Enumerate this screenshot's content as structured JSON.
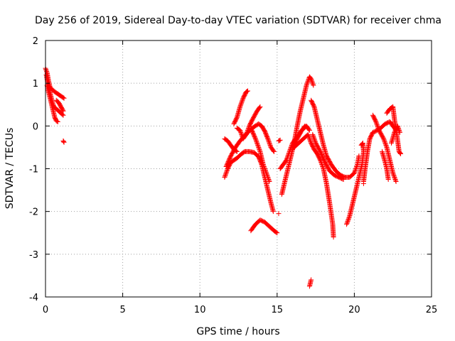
{
  "chart_data": {
    "type": "scatter",
    "title": "Day 256 of 2019, Sidereal Day-to-day VTEC variation (SDTVAR) for receiver chma",
    "xlabel": "GPS time / hours",
    "ylabel": "SDTVAR / TECUs",
    "xlim": [
      0,
      25
    ],
    "ylim": [
      -4,
      2
    ],
    "xticks": [
      0,
      5,
      10,
      15,
      20,
      25
    ],
    "yticks": [
      -4,
      -3,
      -2,
      -1,
      0,
      1,
      2
    ],
    "xtick_labels": [
      "0",
      "5",
      "10",
      "15",
      "20",
      "25"
    ],
    "ytick_labels": [
      "-4",
      "-3",
      "-2",
      "-1",
      "0",
      "1",
      "2"
    ],
    "grid": true,
    "marker": "plus",
    "color": "#ff0000",
    "series": [
      {
        "name": "",
        "tracks": [
          [
            [
              0.0,
              1.35
            ],
            [
              0.1,
              1.25
            ],
            [
              0.2,
              1.05
            ],
            [
              0.3,
              0.9
            ],
            [
              0.45,
              0.85
            ],
            [
              0.6,
              0.8
            ],
            [
              0.8,
              0.75
            ],
            [
              1.0,
              0.7
            ],
            [
              1.2,
              0.65
            ]
          ],
          [
            [
              0.05,
              1.2
            ],
            [
              0.15,
              1.0
            ],
            [
              0.25,
              0.85
            ],
            [
              0.35,
              0.7
            ],
            [
              0.45,
              0.55
            ],
            [
              0.55,
              0.45
            ],
            [
              0.7,
              0.4
            ],
            [
              0.85,
              0.35
            ],
            [
              1.0,
              0.3
            ],
            [
              1.15,
              0.25
            ]
          ],
          [
            [
              0.1,
              0.95
            ],
            [
              0.2,
              0.8
            ],
            [
              0.3,
              0.65
            ],
            [
              0.4,
              0.5
            ],
            [
              0.5,
              0.35
            ],
            [
              0.6,
              0.2
            ],
            [
              0.7,
              0.12
            ],
            [
              0.8,
              0.1
            ]
          ],
          [
            [
              0.7,
              0.6
            ],
            [
              0.85,
              0.55
            ],
            [
              1.0,
              0.45
            ],
            [
              1.15,
              0.35
            ]
          ],
          [
            [
              1.15,
              -0.35
            ],
            [
              1.2,
              -0.38
            ]
          ],
          [
            [
              11.6,
              -1.2
            ],
            [
              11.8,
              -1.0
            ],
            [
              12.0,
              -0.85
            ],
            [
              12.2,
              -0.8
            ],
            [
              12.4,
              -0.75
            ],
            [
              12.7,
              -0.65
            ],
            [
              12.9,
              -0.6
            ],
            [
              13.2,
              -0.6
            ],
            [
              13.5,
              -0.62
            ],
            [
              13.8,
              -0.72
            ],
            [
              14.0,
              -0.9
            ],
            [
              14.2,
              -1.2
            ],
            [
              14.4,
              -1.5
            ],
            [
              14.6,
              -1.8
            ],
            [
              14.75,
              -2.0
            ]
          ],
          [
            [
              11.6,
              -0.3
            ],
            [
              11.8,
              -0.35
            ],
            [
              12.0,
              -0.45
            ],
            [
              12.2,
              -0.55
            ],
            [
              12.4,
              -0.6
            ]
          ],
          [
            [
              12.2,
              0.05
            ],
            [
              12.4,
              0.2
            ],
            [
              12.6,
              0.45
            ],
            [
              12.8,
              0.65
            ],
            [
              13.0,
              0.8
            ],
            [
              13.1,
              0.82
            ]
          ],
          [
            [
              12.4,
              -0.05
            ],
            [
              12.6,
              -0.1
            ],
            [
              12.8,
              -0.3
            ],
            [
              13.0,
              -0.2
            ],
            [
              13.2,
              0.0
            ],
            [
              13.4,
              0.15
            ],
            [
              13.7,
              0.35
            ],
            [
              13.9,
              0.45
            ]
          ],
          [
            [
              11.7,
              -0.95
            ],
            [
              12.0,
              -0.7
            ],
            [
              12.3,
              -0.5
            ],
            [
              12.6,
              -0.35
            ],
            [
              12.9,
              -0.22
            ],
            [
              13.2,
              -0.12
            ],
            [
              13.5,
              -0.02
            ],
            [
              13.8,
              0.05
            ],
            [
              14.0,
              0.0
            ],
            [
              14.2,
              -0.12
            ],
            [
              14.4,
              -0.3
            ],
            [
              14.6,
              -0.5
            ],
            [
              14.8,
              -0.6
            ]
          ],
          [
            [
              13.3,
              -0.05
            ],
            [
              13.6,
              -0.3
            ],
            [
              13.9,
              -0.6
            ],
            [
              14.1,
              -0.9
            ],
            [
              14.3,
              -1.1
            ],
            [
              14.5,
              -1.3
            ]
          ],
          [
            [
              13.3,
              -2.45
            ],
            [
              13.6,
              -2.3
            ],
            [
              13.9,
              -2.2
            ],
            [
              14.2,
              -2.25
            ],
            [
              14.5,
              -2.35
            ],
            [
              14.8,
              -2.45
            ],
            [
              15.0,
              -2.5
            ]
          ],
          [
            [
              15.1,
              -0.35
            ],
            [
              15.2,
              -0.33
            ]
          ],
          [
            [
              15.2,
              -1.0
            ],
            [
              15.4,
              -0.9
            ],
            [
              15.6,
              -0.8
            ],
            [
              15.8,
              -0.6
            ],
            [
              16.0,
              -0.4
            ],
            [
              16.2,
              -0.3
            ],
            [
              16.4,
              -0.2
            ],
            [
              16.6,
              -0.1
            ],
            [
              16.8,
              0.0
            ]
          ],
          [
            [
              15.3,
              -1.6
            ],
            [
              15.5,
              -1.3
            ],
            [
              15.7,
              -1.0
            ],
            [
              15.9,
              -0.7
            ],
            [
              16.1,
              -0.4
            ],
            [
              16.3,
              0.0
            ],
            [
              16.5,
              0.35
            ],
            [
              16.7,
              0.65
            ],
            [
              16.9,
              0.95
            ],
            [
              17.1,
              1.15
            ],
            [
              17.2,
              1.1
            ],
            [
              17.35,
              0.95
            ]
          ],
          [
            [
              16.1,
              -0.5
            ],
            [
              16.4,
              -0.4
            ],
            [
              16.7,
              -0.3
            ],
            [
              17.0,
              -0.2
            ],
            [
              17.2,
              -0.4
            ],
            [
              17.4,
              -0.55
            ],
            [
              17.6,
              -0.65
            ],
            [
              17.8,
              -0.8
            ],
            [
              18.0,
              -1.0
            ],
            [
              18.2,
              -1.35
            ],
            [
              18.4,
              -1.8
            ],
            [
              18.6,
              -2.3
            ],
            [
              18.65,
              -2.6
            ]
          ],
          [
            [
              16.0,
              -0.55
            ],
            [
              16.3,
              -0.3
            ],
            [
              16.6,
              -0.1
            ],
            [
              16.9,
              0.0
            ],
            [
              17.1,
              -0.1
            ]
          ],
          [
            [
              17.1,
              -3.75
            ],
            [
              17.2,
              -3.6
            ]
          ],
          [
            [
              17.2,
              0.6
            ],
            [
              17.4,
              0.45
            ],
            [
              17.6,
              0.15
            ],
            [
              17.8,
              -0.15
            ],
            [
              18.0,
              -0.45
            ],
            [
              18.2,
              -0.7
            ],
            [
              18.5,
              -0.9
            ],
            [
              18.8,
              -1.05
            ],
            [
              19.1,
              -1.15
            ],
            [
              19.4,
              -1.2
            ],
            [
              19.7,
              -1.2
            ],
            [
              20.0,
              -1.1
            ],
            [
              20.2,
              -0.9
            ],
            [
              20.3,
              -0.7
            ]
          ],
          [
            [
              17.3,
              -0.2
            ],
            [
              17.5,
              -0.4
            ],
            [
              17.8,
              -0.6
            ],
            [
              18.1,
              -0.85
            ],
            [
              18.4,
              -1.05
            ],
            [
              18.7,
              -1.15
            ],
            [
              19.0,
              -1.2
            ],
            [
              19.3,
              -1.25
            ]
          ],
          [
            [
              19.5,
              -2.3
            ],
            [
              19.7,
              -2.1
            ],
            [
              19.9,
              -1.8
            ],
            [
              20.1,
              -1.5
            ],
            [
              20.3,
              -1.2
            ],
            [
              20.5,
              -0.9
            ],
            [
              20.6,
              -0.6
            ],
            [
              20.55,
              -0.4
            ],
            [
              20.45,
              -0.45
            ]
          ],
          [
            [
              20.6,
              -1.3
            ],
            [
              20.7,
              -1.0
            ],
            [
              20.85,
              -0.6
            ],
            [
              21.0,
              -0.3
            ],
            [
              21.2,
              -0.15
            ],
            [
              21.4,
              -0.12
            ],
            [
              21.7,
              -0.05
            ],
            [
              22.0,
              0.05
            ],
            [
              22.3,
              0.1
            ],
            [
              22.5,
              0.0
            ],
            [
              22.7,
              -0.1
            ]
          ],
          [
            [
              21.2,
              0.25
            ],
            [
              21.4,
              0.1
            ],
            [
              21.6,
              -0.1
            ],
            [
              21.9,
              -0.3
            ],
            [
              22.1,
              -0.5
            ],
            [
              22.3,
              -0.8
            ],
            [
              22.5,
              -1.1
            ],
            [
              22.7,
              -1.3
            ]
          ],
          [
            [
              22.1,
              0.3
            ],
            [
              22.3,
              0.4
            ],
            [
              22.5,
              0.45
            ],
            [
              22.6,
              0.15
            ],
            [
              22.75,
              -0.2
            ],
            [
              22.9,
              -0.6
            ],
            [
              23.0,
              -0.65
            ]
          ],
          [
            [
              22.4,
              -0.4
            ],
            [
              22.6,
              -0.15
            ],
            [
              22.8,
              0.0
            ],
            [
              22.95,
              -0.15
            ]
          ],
          [
            [
              21.8,
              -0.6
            ],
            [
              22.0,
              -0.85
            ],
            [
              22.1,
              -1.0
            ],
            [
              22.2,
              -1.25
            ]
          ],
          [
            [
              20.6,
              -1.35
            ]
          ],
          [
            [
              15.1,
              -2.05
            ]
          ]
        ]
      }
    ]
  }
}
